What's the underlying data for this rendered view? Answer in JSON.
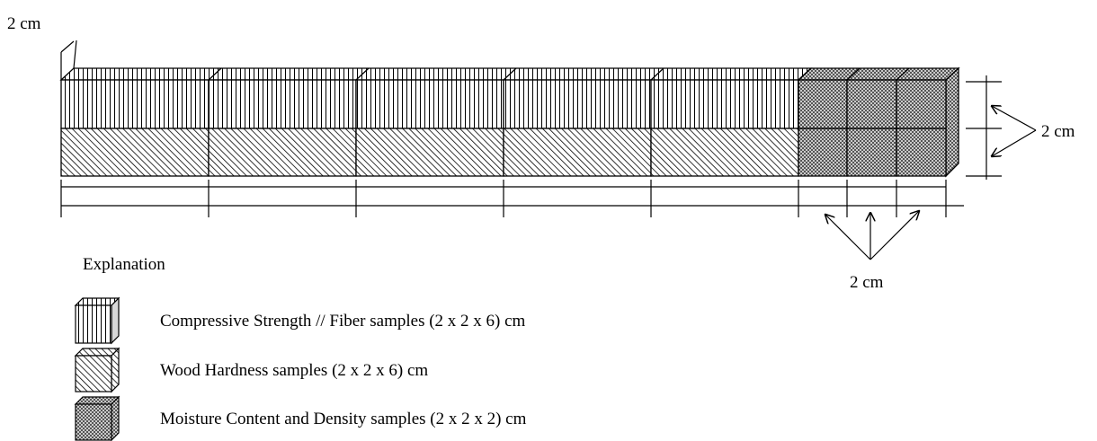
{
  "dimension_labels": {
    "top_left": "2 cm",
    "right": "2 cm",
    "bottom": "2 cm"
  },
  "legend": {
    "title": "Explanation",
    "items": [
      {
        "pattern": "vertical-lines",
        "text": "Compressive Strength // Fiber samples (2 x 2 x 6) cm"
      },
      {
        "pattern": "diagonal-hatch",
        "text": "Wood Hardness samples (2 x 2 x 6) cm"
      },
      {
        "pattern": "checker-dots",
        "text": "Moisture Content and Density samples (2 x 2 x 2) cm"
      }
    ]
  },
  "colors": {
    "line": "#000000",
    "background": "#ffffff"
  }
}
